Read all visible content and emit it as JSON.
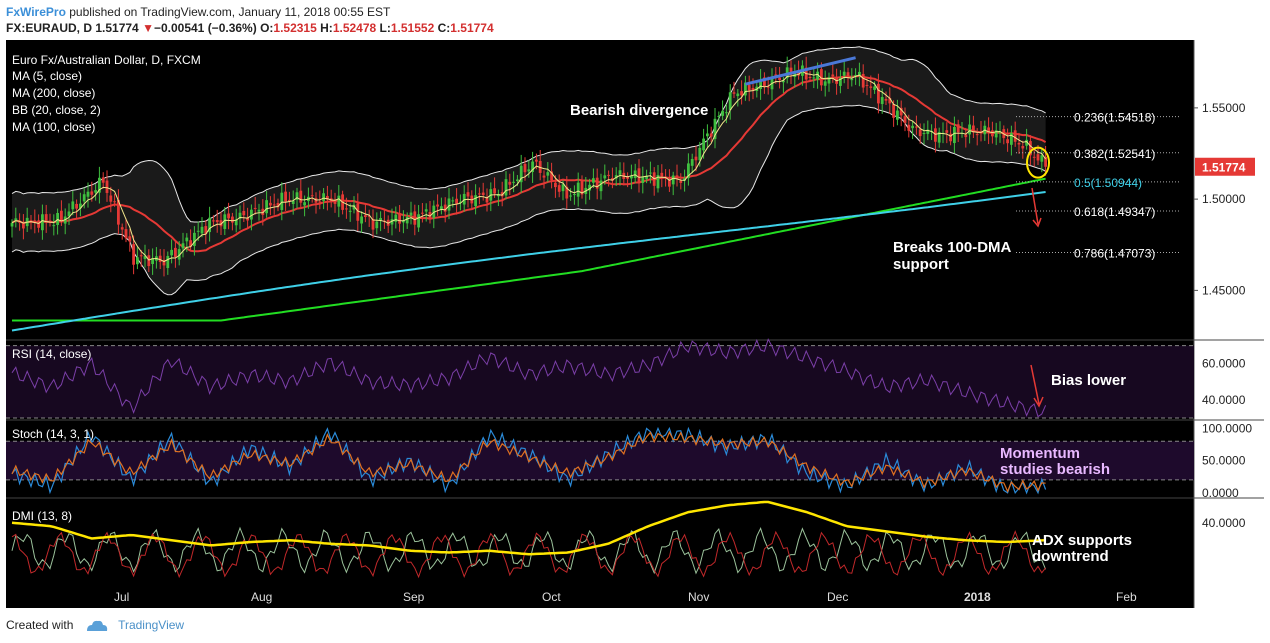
{
  "header": {
    "brand": "FxWirePro",
    "published": "published on TradingView.com, January 11, 2018 00:55 EST",
    "symbol": "FX:EURAUD, D",
    "last": "1.51774",
    "arrow": "▼",
    "change": "−0.00541 (−0.36%)",
    "o_label": "O:",
    "o": "1.52315",
    "h_label": "H:",
    "h": "1.52478",
    "l_label": "L:",
    "l": "1.51552",
    "c_label": "C:",
    "c": "1.51774"
  },
  "footer": {
    "created": "Created with",
    "brand": "TradingView",
    "logo_icon": "tradingview-logo-icon"
  },
  "colors": {
    "background": "#000000",
    "up_candle": "#3fbf3f",
    "down_candle": "#e53935",
    "ma5": "#f0e68c",
    "ma200": "#22dd22",
    "ma100": "#3fd0e8",
    "ma100_red": "#e53935",
    "bollinger": "#e8e8e8",
    "rsi": "#7b3fa8",
    "stoch_k": "#2a8ad8",
    "stoch_d": "#e07020",
    "adx": "#ffe600",
    "price_badge": "#e53935",
    "annotation_arrow": "#e53935",
    "divergence_line": "#4a78d8"
  },
  "chart_data": [
    {
      "type": "candlestick",
      "title": "Euro Fx/Australian Dollar, D, FXCM",
      "legend": [
        "MA (5, close)",
        "MA (200, close)",
        "BB (20, close, 2)",
        "MA (100, close)"
      ],
      "y_ticks": [
        "1.55000",
        "1.50000",
        "1.45000"
      ],
      "y_tick_values": [
        1.55,
        1.5,
        1.45
      ],
      "ylim": [
        1.425,
        1.585
      ],
      "x_ticks": [
        "Jul",
        "Aug",
        "Sep",
        "Oct",
        "Nov",
        "Dec",
        "2018",
        "Feb"
      ],
      "last_price": "1.51774",
      "fibonacci": [
        {
          "label": "0.236(1.54518)",
          "value": 1.54518
        },
        {
          "label": "0.382(1.52541)",
          "value": 1.52541
        },
        {
          "label": "0.5(1.50944)",
          "value": 1.50944
        },
        {
          "label": "0.618(1.49347)",
          "value": 1.49347
        },
        {
          "label": "0.786(1.47073)",
          "value": 1.47073
        }
      ],
      "annotations": [
        "Bearish divergence",
        "Breaks 100-DMA",
        "support"
      ],
      "anchors": [
        [
          0,
          1.487
        ],
        [
          12,
          1.488
        ],
        [
          24,
          1.51
        ],
        [
          32,
          1.468
        ],
        [
          40,
          1.466
        ],
        [
          52,
          1.487
        ],
        [
          60,
          1.49
        ],
        [
          72,
          1.5
        ],
        [
          84,
          1.5
        ],
        [
          95,
          1.487
        ],
        [
          106,
          1.49
        ],
        [
          118,
          1.5
        ],
        [
          128,
          1.503
        ],
        [
          137,
          1.52
        ],
        [
          146,
          1.502
        ],
        [
          158,
          1.513
        ],
        [
          168,
          1.512
        ],
        [
          176,
          1.51
        ],
        [
          183,
          1.535
        ],
        [
          190,
          1.558
        ],
        [
          198,
          1.563
        ],
        [
          206,
          1.57
        ],
        [
          214,
          1.565
        ],
        [
          222,
          1.568
        ],
        [
          230,
          1.553
        ],
        [
          237,
          1.538
        ],
        [
          244,
          1.535
        ],
        [
          251,
          1.537
        ],
        [
          258,
          1.537
        ],
        [
          266,
          1.53
        ],
        [
          272,
          1.518
        ]
      ]
    },
    {
      "type": "line",
      "title": "RSI (14, close)",
      "y_ticks": [
        "60.0000",
        "40.0000"
      ],
      "y_tick_values": [
        60,
        40
      ],
      "ylim": [
        30,
        72
      ],
      "bands": [
        70,
        30
      ],
      "annotation": "Bias lower",
      "values": [
        55,
        47,
        60,
        35,
        62,
        47,
        54,
        50,
        61,
        50,
        48,
        52,
        64,
        54,
        59,
        54,
        59,
        70,
        66,
        70,
        63,
        56,
        47,
        51,
        44,
        38,
        33
      ]
    },
    {
      "type": "line",
      "title": "Stoch (14, 3, 1)",
      "y_ticks": [
        "100.0000",
        "50.0000",
        "0.0000"
      ],
      "y_tick_values": [
        100,
        50,
        0
      ],
      "ylim": [
        -5,
        110
      ],
      "bands": [
        80,
        20
      ],
      "annotation": [
        "Momentum",
        "studies bearish"
      ],
      "k": [
        30,
        10,
        90,
        20,
        85,
        15,
        70,
        40,
        95,
        20,
        50,
        10,
        90,
        60,
        20,
        60,
        95,
        90,
        70,
        85,
        30,
        10,
        50,
        10,
        40,
        5,
        10
      ],
      "d": [
        35,
        20,
        80,
        30,
        75,
        25,
        60,
        45,
        85,
        30,
        45,
        20,
        80,
        55,
        30,
        55,
        88,
        85,
        75,
        80,
        40,
        15,
        40,
        15,
        35,
        10,
        12
      ]
    },
    {
      "type": "line",
      "title": "DMI (13, 8)",
      "y_ticks": [
        "40.0000"
      ],
      "y_tick_values": [
        40
      ],
      "ylim": [
        5,
        53
      ],
      "annotation": [
        "ADX supports",
        "downtrend"
      ],
      "adx": [
        40,
        38,
        31,
        33,
        30,
        27,
        29,
        30,
        28,
        27,
        24,
        23,
        24,
        22,
        23,
        28,
        38,
        46,
        50,
        52,
        46,
        38,
        35,
        32,
        30,
        29,
        30
      ]
    }
  ]
}
